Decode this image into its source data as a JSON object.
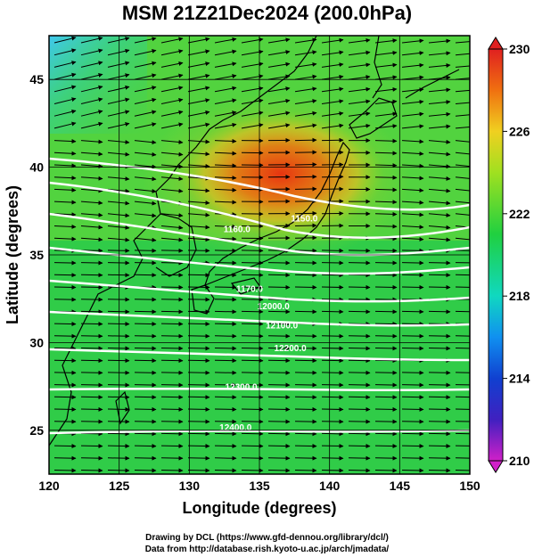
{
  "title": "MSM 21Z21Dec2024 (200.0hPa)",
  "xlabel": "Longitude (degrees)",
  "ylabel": "Latitude  (degrees)",
  "credit_line1": "Drawing by DCL (https://www.gfd-dennou.org/library/dcl/)",
  "credit_line2": "Data from http://database.rish.kyoto-u.ac.jp/arch/jmadata/",
  "chart_data": {
    "type": "heatmap",
    "x_range": [
      120,
      150
    ],
    "y_range": [
      22.5,
      47.5
    ],
    "x_ticks": [
      "120",
      "125",
      "130",
      "135",
      "140",
      "145",
      "150"
    ],
    "y_ticks": [
      "25",
      "30",
      "35",
      "40",
      "45"
    ],
    "colorbar": {
      "min": 210,
      "max": 230,
      "tick_labels": [
        "230",
        "226",
        "222",
        "218",
        "214",
        "210"
      ],
      "colors": [
        "#d020c8",
        "#1020c0",
        "#1090f0",
        "#10d8c0",
        "#20d040",
        "#a0e020",
        "#f0d020",
        "#f07010",
        "#e02020"
      ]
    },
    "contour_labels": [
      {
        "text": "1150.0",
        "lon": 138.2,
        "lat": 36.9
      },
      {
        "text": "1160.0",
        "lon": 133.4,
        "lat": 36.3
      },
      {
        "text": "1170.0",
        "lon": 134.3,
        "lat": 32.9
      },
      {
        "text": "12000.0",
        "lon": 136.0,
        "lat": 31.9
      },
      {
        "text": "12100.0",
        "lon": 136.6,
        "lat": 30.8
      },
      {
        "text": "12200.0",
        "lon": 137.2,
        "lat": 29.5
      },
      {
        "text": "12300.0",
        "lon": 133.7,
        "lat": 27.3
      },
      {
        "text": "12400.0",
        "lon": 133.3,
        "lat": 25.0
      }
    ],
    "wind": "westerly vectors"
  }
}
